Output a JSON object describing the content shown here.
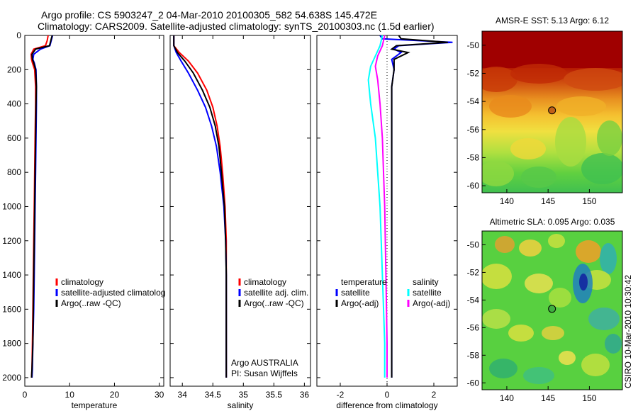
{
  "title_line1": "Argo profile: CS 5903247_2 04-Mar-2010 20100305_582 54.638S 145.472E",
  "title_line2": "Climatology: CARS2009. Satellite-adjusted climatology: synTS_20100303.nc (1.5d earlier)",
  "chart_data": [
    {
      "type": "line",
      "panel": "temperature",
      "xlabel": "temperature",
      "xlim": [
        0,
        31
      ],
      "ylim": [
        2050,
        0
      ],
      "y_reversed": true,
      "xticks": [
        "0",
        "10",
        "20",
        "30"
      ],
      "xtick_values": [
        0,
        10,
        20,
        30
      ],
      "yticks": [
        "0",
        "200",
        "400",
        "600",
        "800",
        "1000",
        "1200",
        "1400",
        "1600",
        "1800",
        "2000"
      ],
      "ytick_values": [
        0,
        200,
        400,
        600,
        800,
        1000,
        1200,
        1400,
        1600,
        1800,
        2000
      ],
      "legend": {
        "placement": "lower-right",
        "entries": [
          {
            "label": "climatology",
            "color": "#ff0000"
          },
          {
            "label": "satellite-adjusted climatolog",
            "color": "#0000ff"
          },
          {
            "label": "Argo(..raw -QC)",
            "color": "#000000"
          }
        ]
      },
      "series": [
        {
          "name": "climatology",
          "color": "#ff0000",
          "x": [
            5.2,
            5.0,
            4.6,
            2.0,
            1.4,
            1.5,
            1.7,
            2.2,
            2.4,
            2.4,
            2.3,
            2.2,
            2.1,
            2.0,
            1.9,
            1.8,
            1.7,
            1.6,
            1.5
          ],
          "y": [
            0,
            30,
            60,
            80,
            110,
            140,
            160,
            200,
            300,
            400,
            600,
            800,
            1000,
            1200,
            1400,
            1600,
            1800,
            1950,
            2000
          ]
        },
        {
          "name": "satellite-adjusted climatology",
          "color": "#0000ff",
          "x": [
            6.2,
            5.9,
            5.6,
            3.5,
            2.0,
            1.8,
            2.1,
            2.5,
            2.6,
            2.6,
            2.5,
            2.4,
            2.3,
            2.2,
            2.1,
            2.0,
            1.8,
            1.7,
            1.6
          ],
          "y": [
            0,
            30,
            60,
            80,
            110,
            140,
            160,
            200,
            300,
            400,
            600,
            800,
            1000,
            1200,
            1400,
            1600,
            1800,
            1950,
            2000
          ]
        },
        {
          "name": "Argo(..raw -QC)",
          "color": "#000000",
          "x": [
            6.1,
            5.8,
            5.5,
            2.4,
            1.6,
            1.7,
            2.0,
            2.4,
            2.6,
            2.5,
            2.4,
            2.3,
            2.2,
            2.1,
            2.0,
            1.9,
            1.8,
            1.6,
            1.5
          ],
          "y": [
            0,
            30,
            60,
            80,
            110,
            140,
            160,
            200,
            300,
            400,
            600,
            800,
            1000,
            1200,
            1400,
            1600,
            1800,
            1950,
            2000
          ]
        }
      ]
    },
    {
      "type": "line",
      "panel": "salinity",
      "xlabel": "salinity",
      "xlim": [
        33.8,
        36.1
      ],
      "ylim": [
        2050,
        0
      ],
      "y_reversed": true,
      "xticks": [
        "34",
        "34.5",
        "35",
        "35.5",
        "36"
      ],
      "xtick_values": [
        34,
        34.5,
        35,
        35.5,
        36
      ],
      "legend": {
        "placement": "lower-right",
        "entries": [
          {
            "label": "climatology",
            "color": "#ff0000"
          },
          {
            "label": "satellite adj. clim.",
            "color": "#0000ff"
          },
          {
            "label": "Argo(..raw -QC)",
            "color": "#000000"
          }
        ]
      },
      "annotation_lines": [
        "Argo AUSTRALIA",
        "PI: Susan Wijffels"
      ],
      "series": [
        {
          "name": "climatology",
          "color": "#ff0000",
          "x": [
            33.86,
            33.86,
            33.95,
            34.1,
            34.25,
            34.4,
            34.5,
            34.57,
            34.62,
            34.66,
            34.7,
            34.72,
            34.72,
            34.72,
            34.72,
            34.72
          ],
          "y": [
            0,
            60,
            100,
            150,
            220,
            320,
            420,
            530,
            650,
            800,
            1000,
            1200,
            1400,
            1600,
            1800,
            2000
          ]
        },
        {
          "name": "satellite adj. clim.",
          "color": "#0000ff",
          "x": [
            33.86,
            33.86,
            33.9,
            33.98,
            34.1,
            34.25,
            34.38,
            34.48,
            34.56,
            34.62,
            34.68,
            34.71,
            34.72,
            34.72,
            34.72,
            34.72
          ],
          "y": [
            0,
            60,
            100,
            150,
            220,
            320,
            420,
            530,
            650,
            800,
            1000,
            1200,
            1400,
            1600,
            1800,
            2000
          ]
        },
        {
          "name": "Argo(..raw -QC)",
          "color": "#000000",
          "x": [
            33.86,
            33.86,
            33.92,
            34.04,
            34.18,
            34.33,
            34.45,
            34.54,
            34.6,
            34.64,
            34.69,
            34.71,
            34.72,
            34.72,
            34.72,
            34.72
          ],
          "y": [
            0,
            60,
            100,
            150,
            220,
            320,
            420,
            530,
            650,
            800,
            1000,
            1200,
            1400,
            1600,
            1800,
            2000
          ]
        }
      ]
    },
    {
      "type": "line",
      "panel": "difference",
      "xlabel": "difference from climatology",
      "xlim": [
        -3.0,
        3.0
      ],
      "ylim": [
        2050,
        0
      ],
      "y_reversed": true,
      "xticks": [
        "-2",
        "0",
        "2"
      ],
      "xtick_values": [
        -2,
        0,
        2
      ],
      "legend_left": {
        "header": "temperature",
        "entries": [
          {
            "label": "satellite",
            "color": "#0000ff"
          },
          {
            "label": "Argo(-adj)",
            "color": "#000000"
          }
        ]
      },
      "legend_right": {
        "header": "salinity",
        "entries": [
          {
            "label": "satellite",
            "color": "#00ffff"
          },
          {
            "label": "Argo(-adj)",
            "color": "#ff00ff"
          }
        ]
      },
      "series": [
        {
          "name": "temperature satellite",
          "color": "#0000ff",
          "x": [
            -0.3,
            -0.2,
            2.8,
            0.5,
            0.3,
            0.6,
            0.2,
            0.3,
            0.2,
            0.2,
            0.2,
            0.2,
            0.2,
            0.2,
            0.2,
            0.2
          ],
          "y": [
            0,
            20,
            40,
            60,
            80,
            100,
            140,
            200,
            300,
            500,
            800,
            1000,
            1300,
            1600,
            1800,
            2000
          ]
        },
        {
          "name": "temperature Argo(-adj)",
          "color": "#000000",
          "x": [
            0.5,
            0.6,
            2.6,
            0.4,
            0.2,
            0.9,
            0.3,
            0.3,
            0.2,
            0.2,
            0.2,
            0.2,
            0.2,
            0.2,
            0.2,
            0.2
          ],
          "y": [
            0,
            20,
            40,
            60,
            80,
            100,
            140,
            200,
            300,
            500,
            800,
            1000,
            1300,
            1600,
            1800,
            2000
          ]
        },
        {
          "name": "salinity satellite",
          "color": "#00ffff",
          "x": [
            -0.2,
            -0.3,
            -0.5,
            -0.7,
            -0.8,
            -0.7,
            -0.5,
            -0.4,
            -0.3,
            -0.2,
            -0.1,
            -0.1
          ],
          "y": [
            0,
            60,
            120,
            180,
            260,
            400,
            600,
            800,
            1000,
            1400,
            1800,
            2000
          ]
        },
        {
          "name": "salinity Argo(-adj)",
          "color": "#ff00ff",
          "x": [
            -0.1,
            -0.2,
            -0.4,
            -0.5,
            -0.4,
            -0.3,
            -0.2,
            -0.15,
            -0.1,
            -0.05,
            0.0,
            0.0
          ],
          "y": [
            0,
            60,
            120,
            180,
            260,
            400,
            600,
            800,
            1000,
            1400,
            1800,
            2000
          ]
        }
      ]
    },
    {
      "type": "heatmap",
      "panel": "sst-map",
      "title": "AMSR-E SST: 5.13 Argo: 6.12",
      "xlim": [
        137,
        154
      ],
      "ylim": [
        -60.5,
        -49.0
      ],
      "xticks": [
        "140",
        "145",
        "150"
      ],
      "xtick_values": [
        140,
        145,
        150
      ],
      "yticks": [
        "-50",
        "-52",
        "-54",
        "-56",
        "-58",
        "-60"
      ],
      "ytick_values": [
        -50,
        -52,
        -54,
        -56,
        -58,
        -60
      ],
      "marker": {
        "lon": 145.472,
        "lat": -54.638
      }
    },
    {
      "type": "heatmap",
      "panel": "sla-map",
      "title": "Altimetric SLA: 0.095 Argo: 0.035",
      "xlim": [
        137,
        154
      ],
      "ylim": [
        -60.5,
        -49.0
      ],
      "xticks": [
        "140",
        "145",
        "150"
      ],
      "xtick_values": [
        140,
        145,
        150
      ],
      "yticks": [
        "-50",
        "-52",
        "-54",
        "-56",
        "-58",
        "-60"
      ],
      "ytick_values": [
        -50,
        -52,
        -54,
        -56,
        -58,
        -60
      ],
      "marker": {
        "lon": 145.472,
        "lat": -54.638
      }
    }
  ],
  "side_label": "CSIRO 10-Mar-2010 10:30:42"
}
